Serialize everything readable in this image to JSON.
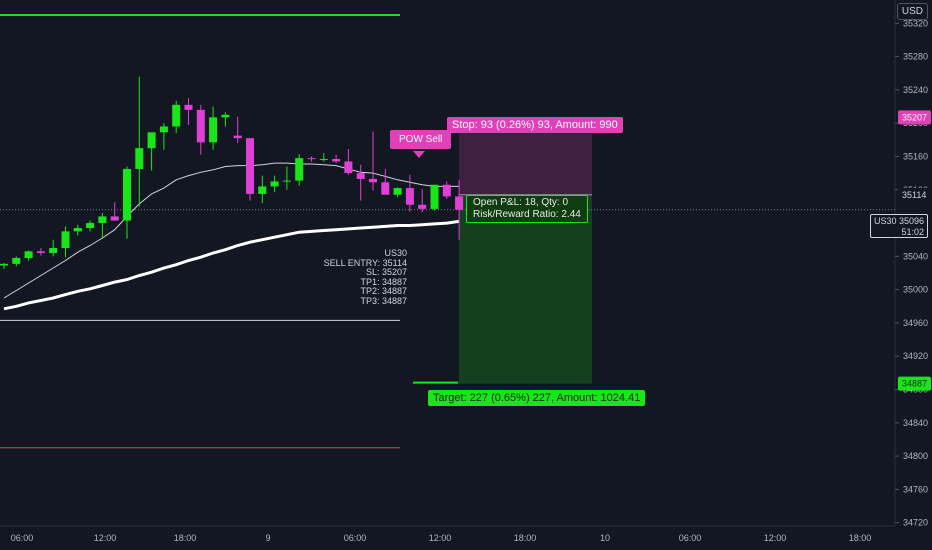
{
  "currency": "USD",
  "symbol": "US30",
  "current_price": "35096",
  "countdown": "51:02",
  "price_tag_dotted": "35114",
  "badge_stop": "35207",
  "badge_target": "34887",
  "stop_label": "Stop: 93 (0.26%) 93, Amount: 990",
  "target_label": "Target: 227 (0.65%) 227, Amount: 1024.41",
  "pnl_line1": "Open P&L: 18, Qty: 0",
  "pnl_line2": "Risk/Reward Ratio: 2.44",
  "signal_label": "POW Sell",
  "trade_info": {
    "symbol": "US30",
    "entry": "SELL ENTRY: 35114",
    "sl": "SL: 35207",
    "tp1": "TP1: 34887",
    "tp2": "TP2: 34887",
    "tp3": "TP3: 34887"
  },
  "colors": {
    "background": "#131722",
    "up_candle": "#19e619",
    "down_candle": "#e040d8",
    "stop_zone": "#e040b8",
    "target_zone": "#19e619",
    "resistance_line": "#29d62b",
    "support_line": "#f23645",
    "ma_fast": "#d1d4dc",
    "ma_slow": "#ffffff"
  },
  "chart_data": {
    "type": "candlestick",
    "y_axis_ticks": [
      35320,
      35280,
      35240,
      35200,
      35160,
      35120,
      35080,
      35040,
      35000,
      34960,
      34920,
      34880,
      34840,
      34800,
      34760,
      34720
    ],
    "x_axis_ticks": [
      "06:00",
      "12:00",
      "18:00",
      "9",
      "06:00",
      "12:00",
      "18:00",
      "10",
      "06:00",
      "12:00",
      "18:00"
    ],
    "ylim": [
      34716,
      35348
    ],
    "candles": [
      [
        0,
        35029,
        35032,
        35025,
        35031
      ],
      [
        1,
        35031,
        35040,
        35028,
        35038
      ],
      [
        2,
        35038,
        35047,
        35035,
        35046
      ],
      [
        3,
        35046,
        35050,
        35041,
        35044
      ],
      [
        4,
        35044,
        35060,
        35040,
        35050
      ],
      [
        5,
        35050,
        35076,
        35039,
        35070
      ],
      [
        6,
        35070,
        35078,
        35065,
        35074
      ],
      [
        7,
        35074,
        35083,
        35070,
        35080
      ],
      [
        8,
        35080,
        35092,
        35062,
        35088
      ],
      [
        9,
        35088,
        35105,
        35085,
        35083
      ],
      [
        10,
        35083,
        35148,
        35061,
        35145
      ],
      [
        11,
        35145,
        35256,
        35100,
        35170
      ],
      [
        12,
        35170,
        35188,
        35143,
        35189
      ],
      [
        13,
        35189,
        35200,
        35168,
        35196
      ],
      [
        14,
        35196,
        35227,
        35188,
        35222
      ],
      [
        15,
        35222,
        35230,
        35198,
        35216
      ],
      [
        16,
        35216,
        35222,
        35162,
        35177
      ],
      [
        17,
        35177,
        35220,
        35168,
        35207
      ],
      [
        18,
        35207,
        35213,
        35196,
        35210
      ],
      [
        19,
        35185,
        35208,
        35176,
        35182
      ],
      [
        20,
        35182,
        35181,
        35107,
        35115
      ],
      [
        21,
        35115,
        35137,
        35104,
        35124
      ],
      [
        22,
        35124,
        35137,
        35117,
        35130
      ],
      [
        23,
        35130,
        35148,
        35120,
        35131
      ],
      [
        24,
        35131,
        35163,
        35125,
        35158
      ],
      [
        25,
        35158,
        35160,
        35154,
        35157
      ],
      [
        26,
        35157,
        35164,
        35154,
        35157
      ],
      [
        27,
        35157,
        35162,
        35152,
        35154
      ],
      [
        28,
        35154,
        35169,
        35138,
        35140
      ],
      [
        29,
        35140,
        35150,
        35107,
        35133
      ],
      [
        30,
        35133,
        35190,
        35119,
        35129
      ],
      [
        31,
        35129,
        35145,
        35117,
        35114
      ],
      [
        32,
        35114,
        35123,
        35111,
        35122
      ],
      [
        33,
        35122,
        35138,
        35094,
        35102
      ],
      [
        34,
        35102,
        35121,
        35093,
        35097
      ],
      [
        35,
        35097,
        35126,
        35095,
        35126
      ],
      [
        36,
        35126,
        35130,
        35109,
        35112
      ],
      [
        37,
        35112,
        35132,
        35060,
        35096
      ]
    ],
    "ma_fast": [
      [
        0,
        34990
      ],
      [
        1,
        34999
      ],
      [
        2,
        35008
      ],
      [
        3,
        35017
      ],
      [
        4,
        35026
      ],
      [
        5,
        35035
      ],
      [
        6,
        35045
      ],
      [
        7,
        35053
      ],
      [
        8,
        35062
      ],
      [
        9,
        35072
      ],
      [
        10,
        35088
      ],
      [
        11,
        35103
      ],
      [
        12,
        35115
      ],
      [
        13,
        35122
      ],
      [
        14,
        35132
      ],
      [
        15,
        35137
      ],
      [
        16,
        35141
      ],
      [
        17,
        35144
      ],
      [
        18,
        35148
      ],
      [
        19,
        35149
      ],
      [
        20,
        35149
      ],
      [
        21,
        35150
      ],
      [
        22,
        35152
      ],
      [
        23,
        35152
      ],
      [
        24,
        35151
      ],
      [
        25,
        35151
      ],
      [
        26,
        35150
      ],
      [
        27,
        35149
      ],
      [
        28,
        35145
      ],
      [
        29,
        35141
      ],
      [
        30,
        35140
      ],
      [
        31,
        35136
      ],
      [
        32,
        35132
      ],
      [
        33,
        35129
      ],
      [
        34,
        35126
      ],
      [
        35,
        35124
      ],
      [
        36,
        35124
      ],
      [
        37,
        35124
      ]
    ],
    "ma_slow": [
      [
        0,
        34977
      ],
      [
        1,
        34980
      ],
      [
        2,
        34984
      ],
      [
        3,
        34987
      ],
      [
        4,
        34990
      ],
      [
        5,
        34994
      ],
      [
        6,
        34998
      ],
      [
        7,
        35001
      ],
      [
        8,
        35005
      ],
      [
        9,
        35009
      ],
      [
        10,
        35012
      ],
      [
        11,
        35017
      ],
      [
        12,
        35021
      ],
      [
        13,
        35026
      ],
      [
        14,
        35030
      ],
      [
        15,
        35035
      ],
      [
        16,
        35039
      ],
      [
        17,
        35044
      ],
      [
        18,
        35048
      ],
      [
        19,
        35053
      ],
      [
        20,
        35057
      ],
      [
        21,
        35060
      ],
      [
        22,
        35063
      ],
      [
        23,
        35066
      ],
      [
        24,
        35069
      ],
      [
        25,
        35070
      ],
      [
        26,
        35071
      ],
      [
        27,
        35072
      ],
      [
        28,
        35073
      ],
      [
        29,
        35074
      ],
      [
        30,
        35075
      ],
      [
        31,
        35076
      ],
      [
        32,
        35077
      ],
      [
        33,
        35077
      ],
      [
        34,
        35078
      ],
      [
        35,
        35079
      ],
      [
        36,
        35080
      ],
      [
        37,
        35082
      ]
    ],
    "levels": {
      "resistance": 35330,
      "lower_white": 34963,
      "support": 34810,
      "entry": 35114,
      "stop_loss": 35207,
      "target": 34887
    }
  }
}
